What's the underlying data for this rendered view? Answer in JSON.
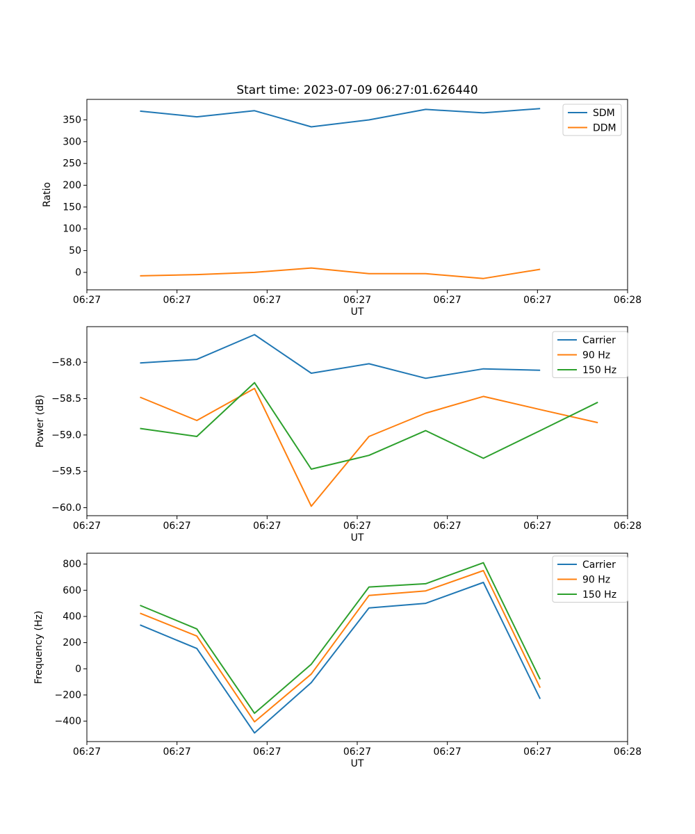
{
  "figure": {
    "title": "Start time: 2023-07-09 06:27:01.626440",
    "colors": {
      "blue": "#1f77b4",
      "orange": "#ff7f0e",
      "green": "#2ca02c"
    }
  },
  "chart_data": [
    {
      "type": "line",
      "title": "Start time: 2023-07-09 06:27:01.626440",
      "xlabel": "UT",
      "ylabel": "Ratio",
      "xlim": [
        0,
        60
      ],
      "ylim": [
        -40,
        397
      ],
      "x_ticks": [
        0,
        10,
        20,
        30,
        40,
        50,
        60
      ],
      "x_tick_labels": [
        "06:27",
        "06:27",
        "06:27",
        "06:27",
        "06:27",
        "06:27",
        "06:28"
      ],
      "y_ticks": [
        0,
        50,
        100,
        150,
        200,
        250,
        300,
        350
      ],
      "y_tick_labels": [
        "0",
        "50",
        "100",
        "150",
        "200",
        "250",
        "300",
        "350"
      ],
      "grid": false,
      "legend_position": "upper right",
      "series": [
        {
          "name": "SDM",
          "color": "#1f77b4",
          "x": [
            5.9,
            12.2,
            18.6,
            24.9,
            31.3,
            37.6,
            44.0,
            50.3
          ],
          "values": [
            370,
            357,
            371,
            334,
            350,
            374,
            366,
            376
          ]
        },
        {
          "name": "DDM",
          "color": "#ff7f0e",
          "x": [
            5.9,
            12.2,
            18.6,
            24.9,
            31.3,
            37.6,
            44.0,
            50.3
          ],
          "values": [
            -8,
            -5,
            0,
            10,
            -3,
            -3,
            -14,
            7
          ]
        }
      ]
    },
    {
      "type": "line",
      "title": "",
      "xlabel": "UT",
      "ylabel": "Power (dB)",
      "xlim": [
        0,
        60
      ],
      "ylim": [
        -60.11,
        -57.51
      ],
      "x_ticks": [
        0,
        10,
        20,
        30,
        40,
        50,
        60
      ],
      "x_tick_labels": [
        "06:27",
        "06:27",
        "06:27",
        "06:27",
        "06:27",
        "06:27",
        "06:28"
      ],
      "y_ticks": [
        -58.0,
        -58.5,
        -59.0,
        -59.5,
        -60.0
      ],
      "y_tick_labels": [
        "−58.0",
        "−58.5",
        "−59.0",
        "−59.5",
        "−60.0"
      ],
      "grid": false,
      "legend_position": "upper right",
      "series": [
        {
          "name": "Carrier",
          "color": "#1f77b4",
          "x": [
            5.9,
            12.2,
            18.6,
            24.9,
            31.3,
            37.6,
            44.0,
            50.3
          ],
          "values": [
            -58.01,
            -57.96,
            -57.62,
            -58.15,
            -58.02,
            -58.22,
            -58.09,
            -58.11
          ]
        },
        {
          "name": "90 Hz",
          "color": "#ff7f0e",
          "x": [
            5.9,
            12.2,
            18.6,
            24.9,
            31.3,
            37.6,
            44.0,
            50.3,
            56.7
          ],
          "values": [
            -58.48,
            -58.8,
            -58.36,
            -59.98,
            -59.02,
            -58.7,
            -58.47,
            -58.65,
            -58.83
          ]
        },
        {
          "name": "150 Hz",
          "color": "#2ca02c",
          "x": [
            5.9,
            12.2,
            18.6,
            24.9,
            31.3,
            37.6,
            44.0,
            50.3,
            56.7
          ],
          "values": [
            -58.91,
            -59.02,
            -58.28,
            -59.47,
            -59.28,
            -58.94,
            -59.32,
            -58.94,
            -58.55
          ]
        }
      ]
    },
    {
      "type": "line",
      "title": "",
      "xlabel": "UT",
      "ylabel": "Frequency (Hz)",
      "xlim": [
        0,
        60
      ],
      "ylim": [
        -556,
        883
      ],
      "x_ticks": [
        0,
        10,
        20,
        30,
        40,
        50,
        60
      ],
      "x_tick_labels": [
        "06:27",
        "06:27",
        "06:27",
        "06:27",
        "06:27",
        "06:27",
        "06:28"
      ],
      "y_ticks": [
        800,
        600,
        400,
        200,
        0,
        -200,
        -400
      ],
      "y_tick_labels": [
        "800",
        "600",
        "400",
        "200",
        "0",
        "−200",
        "−400"
      ],
      "grid": false,
      "legend_position": "upper right",
      "series": [
        {
          "name": "Carrier",
          "color": "#1f77b4",
          "x": [
            5.9,
            12.2,
            18.6,
            24.9,
            31.3,
            37.6,
            44.0,
            50.3
          ],
          "values": [
            335,
            155,
            -490,
            -105,
            465,
            500,
            660,
            -230
          ]
        },
        {
          "name": "90 Hz",
          "color": "#ff7f0e",
          "x": [
            5.9,
            12.2,
            18.6,
            24.9,
            31.3,
            37.6,
            44.0,
            50.3
          ],
          "values": [
            425,
            250,
            -405,
            -40,
            560,
            595,
            750,
            -145
          ]
        },
        {
          "name": "150 Hz",
          "color": "#2ca02c",
          "x": [
            5.9,
            12.2,
            18.6,
            24.9,
            31.3,
            37.6,
            44.0,
            50.3
          ],
          "values": [
            485,
            305,
            -340,
            35,
            625,
            650,
            810,
            -80
          ]
        }
      ]
    }
  ]
}
